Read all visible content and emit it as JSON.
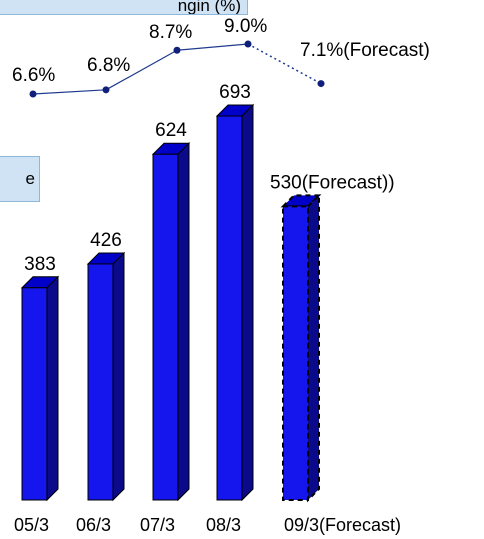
{
  "legend_top_text": "ngin (%)",
  "legend_left_text": "e",
  "colors": {
    "bar": "#1515ee",
    "bar_side": "#0a0a8a",
    "bar_top": "#0000c8",
    "line": "#1f3b8f",
    "marker": "#10207a"
  },
  "chart_data": [
    {
      "type": "bar",
      "categories": [
        "05/3",
        "06/3",
        "07/3",
        "08/3",
        "09/3(Forecast)"
      ],
      "values": [
        383,
        426,
        624,
        693,
        530
      ],
      "value_labels": [
        "383",
        "426",
        "624",
        "693",
        "530(Forecast))"
      ],
      "forecast_index": 4,
      "ylim": [
        0,
        800
      ]
    },
    {
      "type": "line",
      "categories": [
        "05/3",
        "06/3",
        "07/3",
        "08/3",
        "09/3(Forecast)"
      ],
      "values": [
        6.6,
        6.8,
        8.7,
        9.0,
        7.1
      ],
      "value_labels": [
        "6.6%",
        "6.8%",
        "8.7%",
        "9.0%",
        "7.1%(Forecast)"
      ],
      "forecast_index": 4,
      "ylim": [
        4.5,
        10.5
      ]
    }
  ]
}
